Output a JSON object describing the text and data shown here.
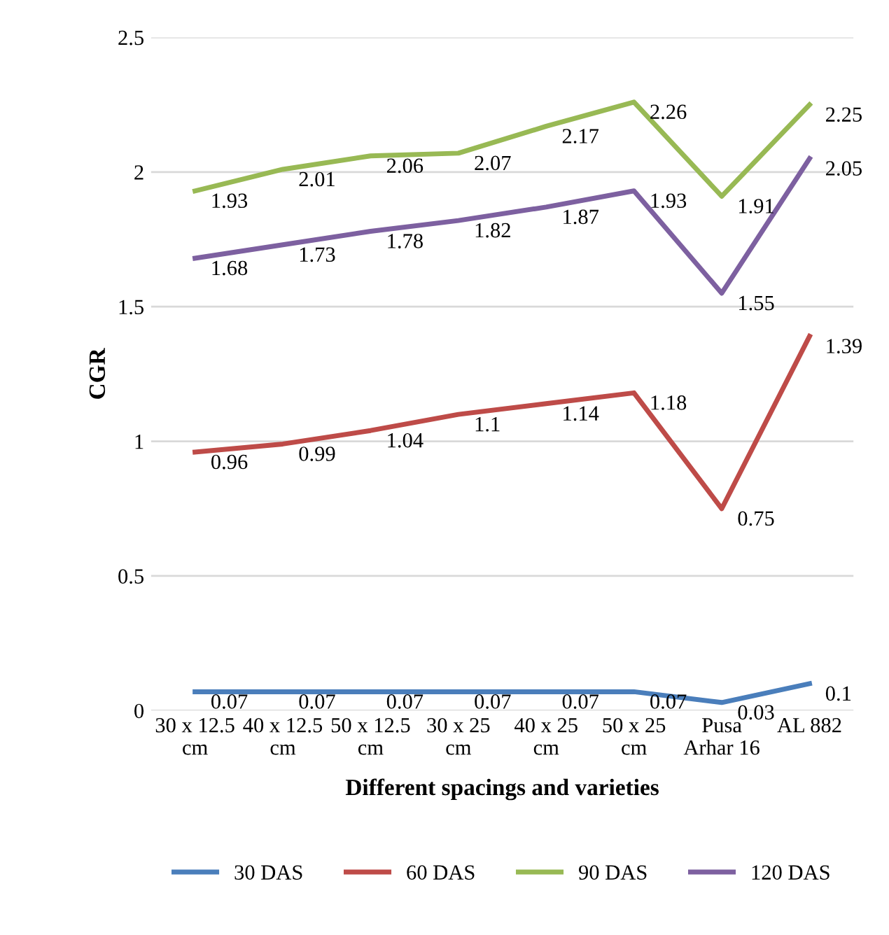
{
  "chart_data": {
    "type": "line",
    "xlabel": "Different spacings and varieties",
    "ylabel": "CGR",
    "categories": [
      "30 x 12.5\ncm",
      "40 x 12.5\ncm",
      "50 x 12.5\ncm",
      "30 x 25\ncm",
      "40 x 25\ncm",
      "50 x 25\ncm",
      "Pusa\nArhar 16",
      "AL 882"
    ],
    "series": [
      {
        "name": "30 DAS",
        "color": "#4a7ebb",
        "values": [
          0.07,
          0.07,
          0.07,
          0.07,
          0.07,
          0.07,
          0.03,
          0.1
        ]
      },
      {
        "name": "60 DAS",
        "color": "#be4b48",
        "values": [
          0.96,
          0.99,
          1.04,
          1.1,
          1.14,
          1.18,
          0.75,
          1.39
        ]
      },
      {
        "name": "90 DAS",
        "color": "#98b954",
        "values": [
          1.93,
          2.01,
          2.06,
          2.07,
          2.17,
          2.26,
          1.91,
          2.25
        ]
      },
      {
        "name": "120 DAS",
        "color": "#7d60a0",
        "values": [
          1.68,
          1.73,
          1.78,
          1.82,
          1.87,
          1.93,
          1.55,
          2.05
        ]
      }
    ],
    "ylim": [
      0,
      2.5
    ],
    "yticks": [
      0,
      0.5,
      1,
      1.5,
      2,
      2.5
    ],
    "grid": "y",
    "legend": "bottom",
    "data_labels": true,
    "marker": "none",
    "line_style": "solid"
  }
}
